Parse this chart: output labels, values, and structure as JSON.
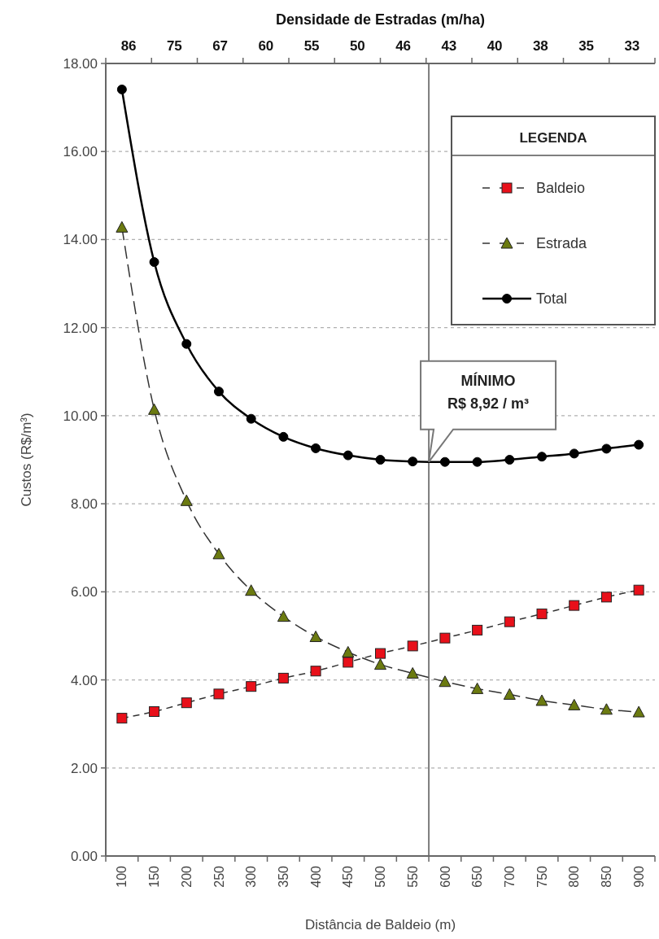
{
  "chart_data": {
    "type": "line",
    "xlabel": "Distância de Baldeio (m)",
    "ylabel": "Custos (R$/m³)",
    "x2label": "Densidade de Estradas (m/ha)",
    "x": [
      100,
      150,
      200,
      250,
      300,
      350,
      400,
      450,
      500,
      550,
      600,
      650,
      700,
      750,
      800,
      850,
      900
    ],
    "xlim": [
      75,
      925
    ],
    "xticks": [
      100,
      150,
      200,
      250,
      300,
      350,
      400,
      450,
      500,
      550,
      600,
      650,
      700,
      750,
      800,
      850,
      900
    ],
    "ylim": [
      0,
      18
    ],
    "yticks": [
      {
        "value": 0,
        "label": "0.00"
      },
      {
        "value": 2,
        "label": "2.00"
      },
      {
        "value": 4,
        "label": "4.00"
      },
      {
        "value": 6,
        "label": "6.00"
      },
      {
        "value": 8,
        "label": "8.00"
      },
      {
        "value": 10,
        "label": "10.00"
      },
      {
        "value": 12,
        "label": "12.00"
      },
      {
        "value": 14,
        "label": "14.00"
      },
      {
        "value": 16,
        "label": "16.00"
      },
      {
        "value": 18,
        "label": "18.00"
      }
    ],
    "series": [
      {
        "name": "Baldeio",
        "color": "#e8101a",
        "marker": "square",
        "line_style": "dashed",
        "values": [
          3.13,
          3.28,
          3.48,
          3.68,
          3.85,
          4.04,
          4.2,
          4.4,
          4.6,
          4.77,
          4.95,
          5.13,
          5.32,
          5.5,
          5.69,
          5.88,
          6.04
        ]
      },
      {
        "name": "Estrada",
        "color": "#6b7a10",
        "marker": "triangle",
        "line_style": "dashed",
        "values": [
          14.28,
          10.14,
          8.07,
          6.86,
          6.03,
          5.44,
          4.98,
          4.63,
          4.35,
          4.15,
          3.96,
          3.8,
          3.67,
          3.53,
          3.43,
          3.33,
          3.27
        ]
      },
      {
        "name": "Total",
        "color": "#000000",
        "marker": "circle",
        "line_style": "solid",
        "values": [
          17.41,
          13.49,
          11.63,
          10.55,
          9.93,
          9.52,
          9.26,
          9.1,
          9.0,
          8.96,
          8.95,
          8.95,
          9.0,
          9.07,
          9.14,
          9.25,
          9.34
        ]
      }
    ],
    "ref_lines": [
      {
        "axis": "x",
        "value": 575,
        "color": "#555555"
      }
    ],
    "annotations": [
      "MÍNIMO\nR$ 8,92 / m³",
      "86",
      "75",
      "67",
      "60",
      "55",
      "50",
      "46",
      "43",
      "40",
      "38",
      "35",
      "33"
    ],
    "grid": "y",
    "legend": "top right",
    "legend_title": "LEGENDA"
  }
}
